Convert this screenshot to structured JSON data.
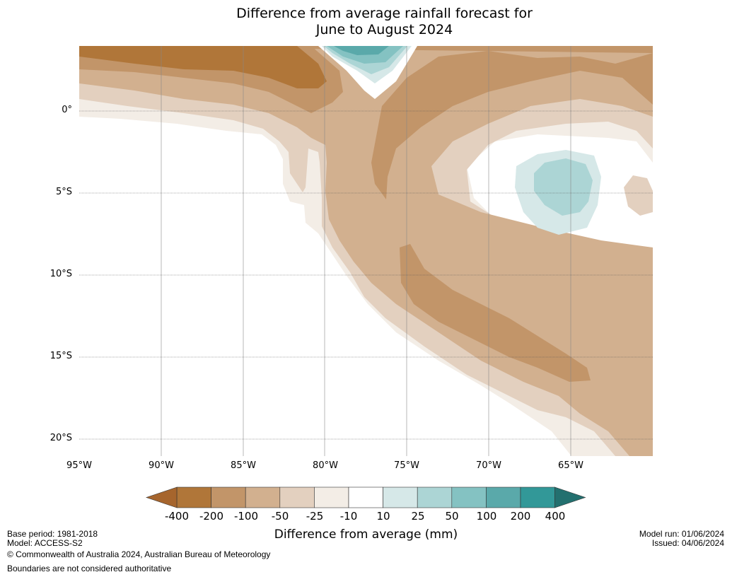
{
  "title": {
    "line1": "Difference from average rainfall forecast for",
    "line2": "June to August 2024"
  },
  "map": {
    "lat_labels": [
      "0°",
      "5°S",
      "10°S",
      "15°S",
      "20°S"
    ],
    "lon_labels": [
      "95°W",
      "90°W",
      "85°W",
      "80°W",
      "75°W",
      "70°W",
      "65°W"
    ],
    "colors": {
      "ocean_neutral": "#ffffff",
      "n400": "#a6652d",
      "n200": "#b07639",
      "n100": "#c29569",
      "n50": "#d2b08f",
      "n25": "#e3d0bf",
      "n10": "#f3ede6",
      "p10": "#d6e8e8",
      "p25": "#acd5d5",
      "p50": "#84c2c2",
      "p100": "#5aa9aa",
      "p200": "#329898",
      "p400": "#23706f",
      "grid": "#888888"
    }
  },
  "colorbar": {
    "title": "Difference from average (mm)",
    "tick_labels": [
      "-400",
      "-200",
      "-100",
      "-50",
      "-25",
      "-10",
      "10",
      "25",
      "50",
      "100",
      "200",
      "400"
    ]
  },
  "footer": {
    "base_period": "Base period: 1981-2018",
    "model": "Model: ACCESS-S2",
    "copyright": "© Commonwealth of Australia 2024, Australian Bureau of Meteorology",
    "boundaries": "Boundaries are not considered authoritative",
    "model_run": "Model run: 01/06/2024",
    "issued": "Issued: 04/06/2024"
  }
}
